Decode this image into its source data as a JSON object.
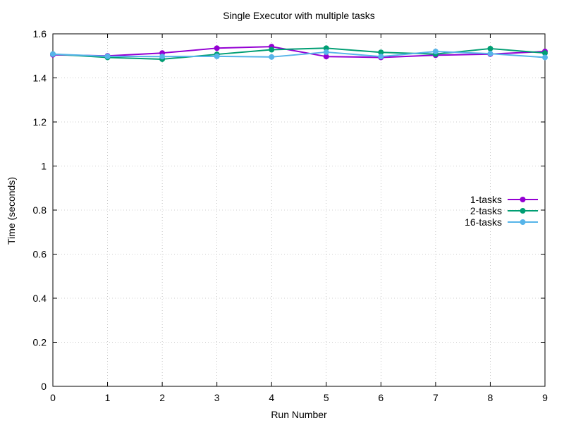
{
  "chart_data": {
    "type": "line",
    "title": "Single Executor with multiple tasks",
    "xlabel": "Run Number",
    "ylabel": "Time (seconds)",
    "xlim": [
      0,
      9
    ],
    "ylim": [
      0,
      1.6
    ],
    "x_ticks": [
      "0",
      "1",
      "2",
      "3",
      "4",
      "5",
      "6",
      "7",
      "8",
      "9"
    ],
    "y_ticks": [
      "0",
      "0.2",
      "0.4",
      "0.6",
      "0.8",
      "1",
      "1.2",
      "1.4",
      "1.6"
    ],
    "grid": true,
    "legend_position": "right",
    "x": [
      0,
      1,
      2,
      3,
      4,
      5,
      6,
      7,
      8,
      9
    ],
    "series": [
      {
        "name": "1-tasks",
        "color": "#9400d3",
        "values": [
          1.505,
          1.5,
          1.513,
          1.535,
          1.542,
          1.497,
          1.493,
          1.503,
          1.508,
          1.52
        ]
      },
      {
        "name": "2-tasks",
        "color": "#009e73",
        "values": [
          1.508,
          1.493,
          1.485,
          1.507,
          1.528,
          1.535,
          1.516,
          1.508,
          1.533,
          1.513
        ]
      },
      {
        "name": "16-tasks",
        "color": "#56b4e9",
        "values": [
          1.508,
          1.498,
          1.497,
          1.498,
          1.495,
          1.517,
          1.497,
          1.52,
          1.51,
          1.493
        ]
      }
    ]
  }
}
